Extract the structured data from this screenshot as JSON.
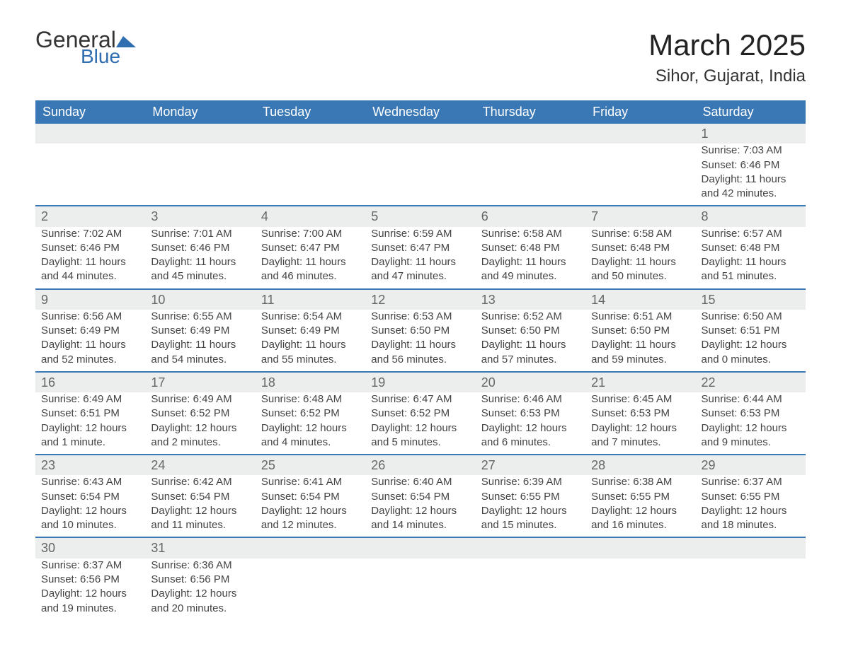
{
  "logo": {
    "general": "General",
    "blue": "Blue"
  },
  "title": {
    "month": "March 2025",
    "location": "Sihor, Gujarat, India"
  },
  "headers": [
    "Sunday",
    "Monday",
    "Tuesday",
    "Wednesday",
    "Thursday",
    "Friday",
    "Saturday"
  ],
  "colors": {
    "header_bg": "#3a78b5",
    "header_text": "#ffffff",
    "daynum_bg": "#eceeee",
    "row_divider": "#3a78b5",
    "text": "#444444",
    "logo_accent": "#2f6eb0",
    "background": "#ffffff"
  },
  "fonts": {
    "title_size_pt": 32,
    "location_size_pt": 18,
    "header_size_pt": 14,
    "body_size_pt": 11
  },
  "weeks": [
    [
      null,
      null,
      null,
      null,
      null,
      null,
      {
        "n": "1",
        "sunrise": "Sunrise: 7:03 AM",
        "sunset": "Sunset: 6:46 PM",
        "day1": "Daylight: 11 hours",
        "day2": "and 42 minutes."
      }
    ],
    [
      {
        "n": "2",
        "sunrise": "Sunrise: 7:02 AM",
        "sunset": "Sunset: 6:46 PM",
        "day1": "Daylight: 11 hours",
        "day2": "and 44 minutes."
      },
      {
        "n": "3",
        "sunrise": "Sunrise: 7:01 AM",
        "sunset": "Sunset: 6:46 PM",
        "day1": "Daylight: 11 hours",
        "day2": "and 45 minutes."
      },
      {
        "n": "4",
        "sunrise": "Sunrise: 7:00 AM",
        "sunset": "Sunset: 6:47 PM",
        "day1": "Daylight: 11 hours",
        "day2": "and 46 minutes."
      },
      {
        "n": "5",
        "sunrise": "Sunrise: 6:59 AM",
        "sunset": "Sunset: 6:47 PM",
        "day1": "Daylight: 11 hours",
        "day2": "and 47 minutes."
      },
      {
        "n": "6",
        "sunrise": "Sunrise: 6:58 AM",
        "sunset": "Sunset: 6:48 PM",
        "day1": "Daylight: 11 hours",
        "day2": "and 49 minutes."
      },
      {
        "n": "7",
        "sunrise": "Sunrise: 6:58 AM",
        "sunset": "Sunset: 6:48 PM",
        "day1": "Daylight: 11 hours",
        "day2": "and 50 minutes."
      },
      {
        "n": "8",
        "sunrise": "Sunrise: 6:57 AM",
        "sunset": "Sunset: 6:48 PM",
        "day1": "Daylight: 11 hours",
        "day2": "and 51 minutes."
      }
    ],
    [
      {
        "n": "9",
        "sunrise": "Sunrise: 6:56 AM",
        "sunset": "Sunset: 6:49 PM",
        "day1": "Daylight: 11 hours",
        "day2": "and 52 minutes."
      },
      {
        "n": "10",
        "sunrise": "Sunrise: 6:55 AM",
        "sunset": "Sunset: 6:49 PM",
        "day1": "Daylight: 11 hours",
        "day2": "and 54 minutes."
      },
      {
        "n": "11",
        "sunrise": "Sunrise: 6:54 AM",
        "sunset": "Sunset: 6:49 PM",
        "day1": "Daylight: 11 hours",
        "day2": "and 55 minutes."
      },
      {
        "n": "12",
        "sunrise": "Sunrise: 6:53 AM",
        "sunset": "Sunset: 6:50 PM",
        "day1": "Daylight: 11 hours",
        "day2": "and 56 minutes."
      },
      {
        "n": "13",
        "sunrise": "Sunrise: 6:52 AM",
        "sunset": "Sunset: 6:50 PM",
        "day1": "Daylight: 11 hours",
        "day2": "and 57 minutes."
      },
      {
        "n": "14",
        "sunrise": "Sunrise: 6:51 AM",
        "sunset": "Sunset: 6:50 PM",
        "day1": "Daylight: 11 hours",
        "day2": "and 59 minutes."
      },
      {
        "n": "15",
        "sunrise": "Sunrise: 6:50 AM",
        "sunset": "Sunset: 6:51 PM",
        "day1": "Daylight: 12 hours",
        "day2": "and 0 minutes."
      }
    ],
    [
      {
        "n": "16",
        "sunrise": "Sunrise: 6:49 AM",
        "sunset": "Sunset: 6:51 PM",
        "day1": "Daylight: 12 hours",
        "day2": "and 1 minute."
      },
      {
        "n": "17",
        "sunrise": "Sunrise: 6:49 AM",
        "sunset": "Sunset: 6:52 PM",
        "day1": "Daylight: 12 hours",
        "day2": "and 2 minutes."
      },
      {
        "n": "18",
        "sunrise": "Sunrise: 6:48 AM",
        "sunset": "Sunset: 6:52 PM",
        "day1": "Daylight: 12 hours",
        "day2": "and 4 minutes."
      },
      {
        "n": "19",
        "sunrise": "Sunrise: 6:47 AM",
        "sunset": "Sunset: 6:52 PM",
        "day1": "Daylight: 12 hours",
        "day2": "and 5 minutes."
      },
      {
        "n": "20",
        "sunrise": "Sunrise: 6:46 AM",
        "sunset": "Sunset: 6:53 PM",
        "day1": "Daylight: 12 hours",
        "day2": "and 6 minutes."
      },
      {
        "n": "21",
        "sunrise": "Sunrise: 6:45 AM",
        "sunset": "Sunset: 6:53 PM",
        "day1": "Daylight: 12 hours",
        "day2": "and 7 minutes."
      },
      {
        "n": "22",
        "sunrise": "Sunrise: 6:44 AM",
        "sunset": "Sunset: 6:53 PM",
        "day1": "Daylight: 12 hours",
        "day2": "and 9 minutes."
      }
    ],
    [
      {
        "n": "23",
        "sunrise": "Sunrise: 6:43 AM",
        "sunset": "Sunset: 6:54 PM",
        "day1": "Daylight: 12 hours",
        "day2": "and 10 minutes."
      },
      {
        "n": "24",
        "sunrise": "Sunrise: 6:42 AM",
        "sunset": "Sunset: 6:54 PM",
        "day1": "Daylight: 12 hours",
        "day2": "and 11 minutes."
      },
      {
        "n": "25",
        "sunrise": "Sunrise: 6:41 AM",
        "sunset": "Sunset: 6:54 PM",
        "day1": "Daylight: 12 hours",
        "day2": "and 12 minutes."
      },
      {
        "n": "26",
        "sunrise": "Sunrise: 6:40 AM",
        "sunset": "Sunset: 6:54 PM",
        "day1": "Daylight: 12 hours",
        "day2": "and 14 minutes."
      },
      {
        "n": "27",
        "sunrise": "Sunrise: 6:39 AM",
        "sunset": "Sunset: 6:55 PM",
        "day1": "Daylight: 12 hours",
        "day2": "and 15 minutes."
      },
      {
        "n": "28",
        "sunrise": "Sunrise: 6:38 AM",
        "sunset": "Sunset: 6:55 PM",
        "day1": "Daylight: 12 hours",
        "day2": "and 16 minutes."
      },
      {
        "n": "29",
        "sunrise": "Sunrise: 6:37 AM",
        "sunset": "Sunset: 6:55 PM",
        "day1": "Daylight: 12 hours",
        "day2": "and 18 minutes."
      }
    ],
    [
      {
        "n": "30",
        "sunrise": "Sunrise: 6:37 AM",
        "sunset": "Sunset: 6:56 PM",
        "day1": "Daylight: 12 hours",
        "day2": "and 19 minutes."
      },
      {
        "n": "31",
        "sunrise": "Sunrise: 6:36 AM",
        "sunset": "Sunset: 6:56 PM",
        "day1": "Daylight: 12 hours",
        "day2": "and 20 minutes."
      },
      null,
      null,
      null,
      null,
      null
    ]
  ]
}
